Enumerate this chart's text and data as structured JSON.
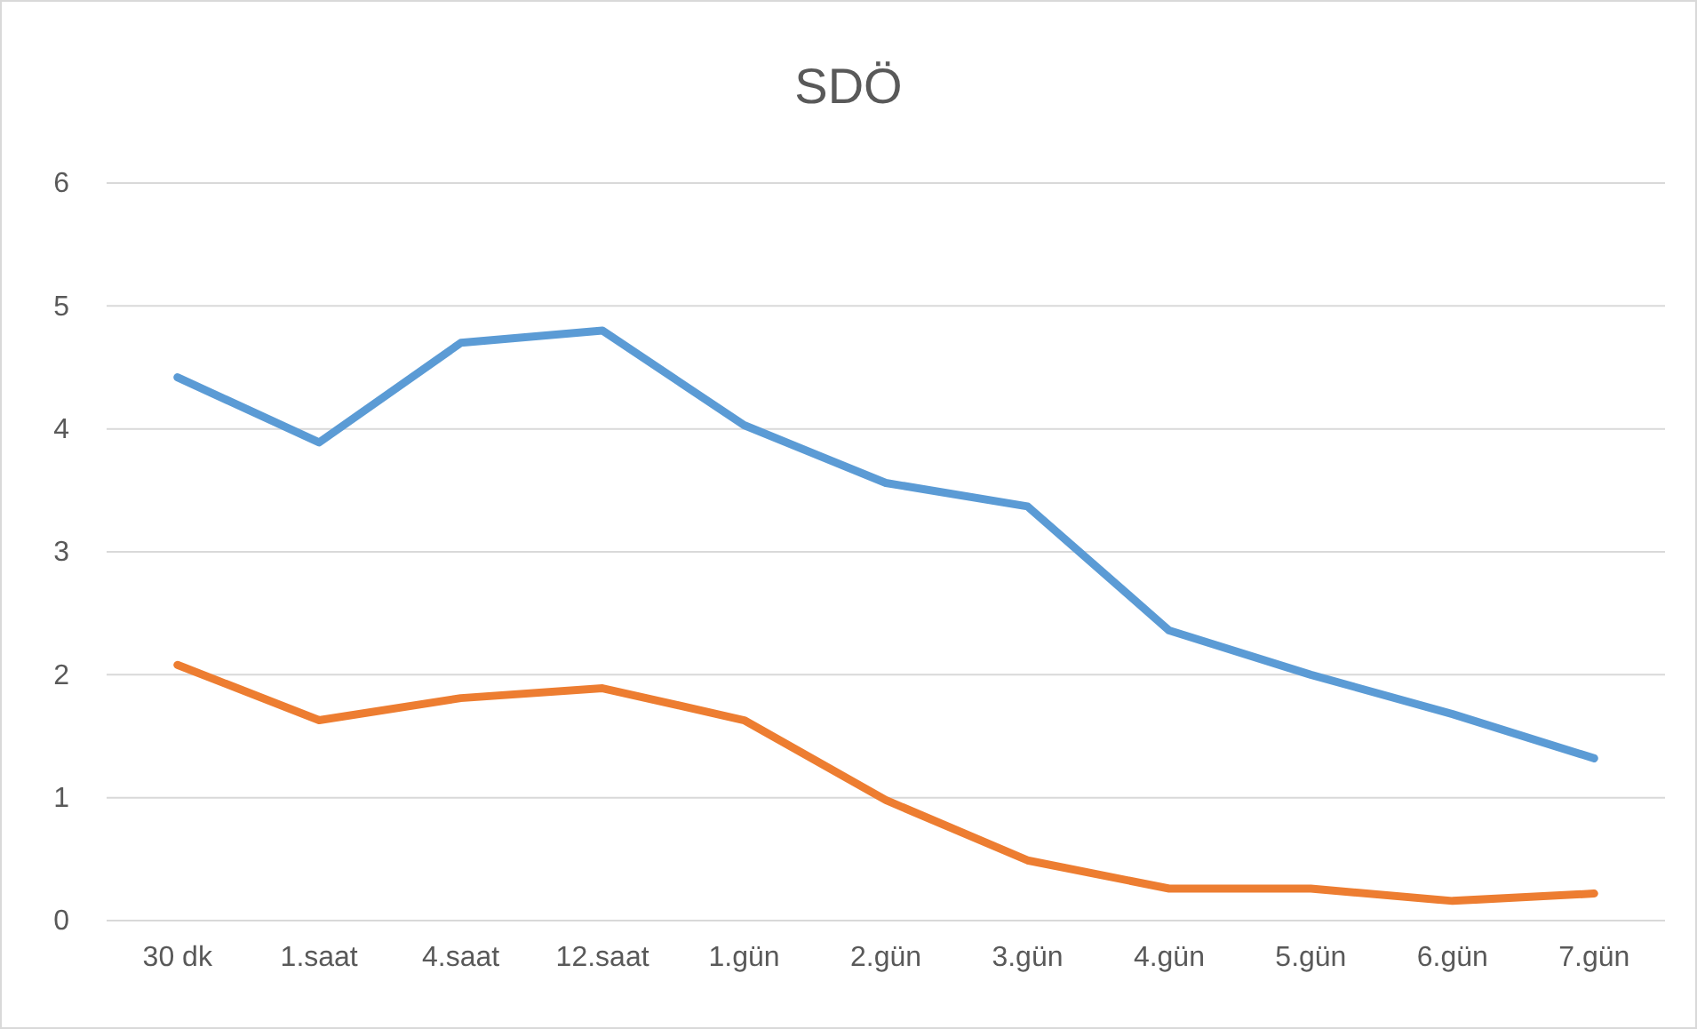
{
  "chart_data": {
    "type": "line",
    "title": "SDÖ",
    "categories": [
      "30 dk",
      "1.saat",
      "4.saat",
      "12.saat",
      "1.gün",
      "2.gün",
      "3.gün",
      "4.gün",
      "5.gün",
      "6.gün",
      "7.gün"
    ],
    "series": [
      {
        "color": "#5b9bd5",
        "values": [
          4.42,
          3.89,
          4.7,
          4.8,
          4.03,
          3.56,
          3.37,
          2.36,
          2.0,
          1.68,
          1.32
        ]
      },
      {
        "color": "#ed7d31",
        "values": [
          2.08,
          1.63,
          1.81,
          1.89,
          1.63,
          0.98,
          0.49,
          0.26,
          0.26,
          0.16,
          0.22
        ]
      }
    ],
    "ylim": [
      0,
      6
    ],
    "yticks": [
      0,
      1,
      2,
      3,
      4,
      5,
      6
    ],
    "grid": "y",
    "marker": "none",
    "line_style": "solid"
  }
}
